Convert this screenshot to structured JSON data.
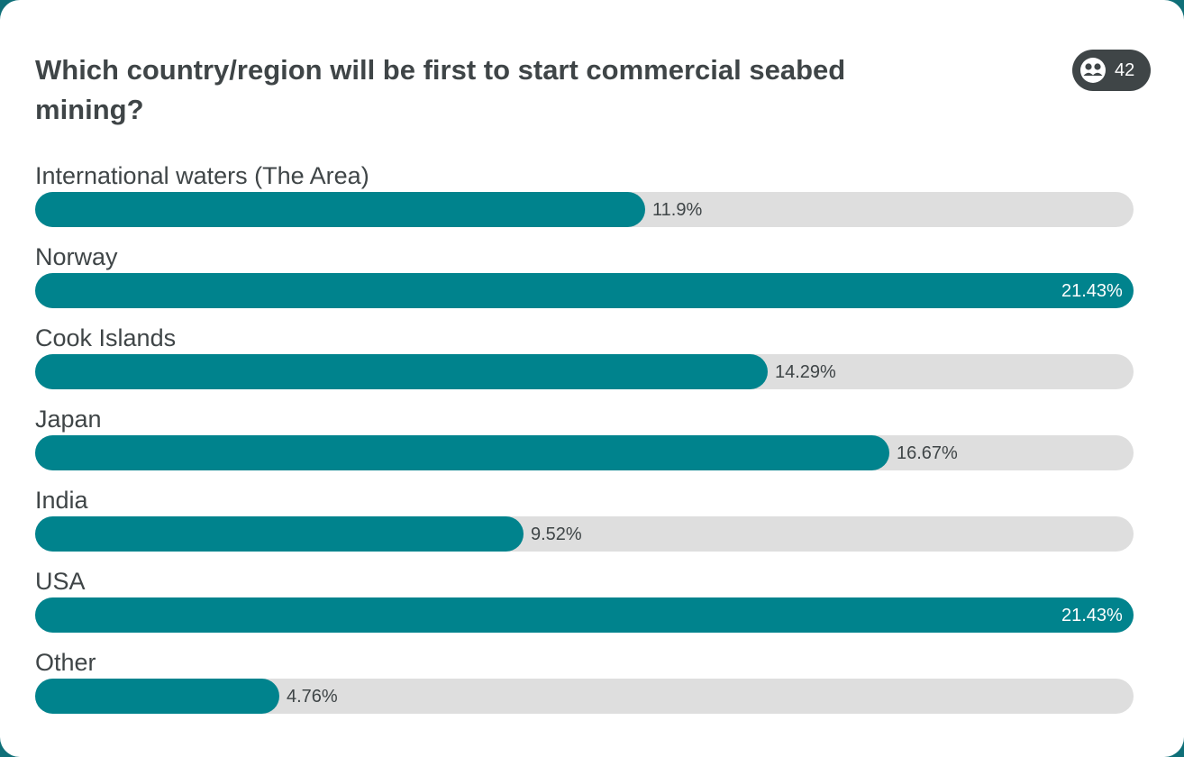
{
  "poll": {
    "question": "Which country/region will be first to start commercial seabed mining?",
    "participants_icon": "people-icon",
    "participants": "42"
  },
  "colors": {
    "bar_fill": "#00838d",
    "bar_track": "#dedede",
    "text": "#3f4547",
    "badge_bg": "#3f4547"
  },
  "chart_data": {
    "type": "bar",
    "orientation": "horizontal",
    "title": "Which country/region will be first to start commercial seabed mining?",
    "categories": [
      "International waters (The Area)",
      "Norway",
      "Cook Islands",
      "Japan",
      "India",
      "USA",
      "Other"
    ],
    "values": [
      11.9,
      21.43,
      14.29,
      16.67,
      9.52,
      21.43,
      4.76
    ],
    "value_labels": [
      "11.9%",
      "21.43%",
      "14.29%",
      "16.67%",
      "9.52%",
      "21.43%",
      "4.76%"
    ],
    "xlim": [
      0,
      21.43
    ],
    "grid": false,
    "legend": "none"
  }
}
